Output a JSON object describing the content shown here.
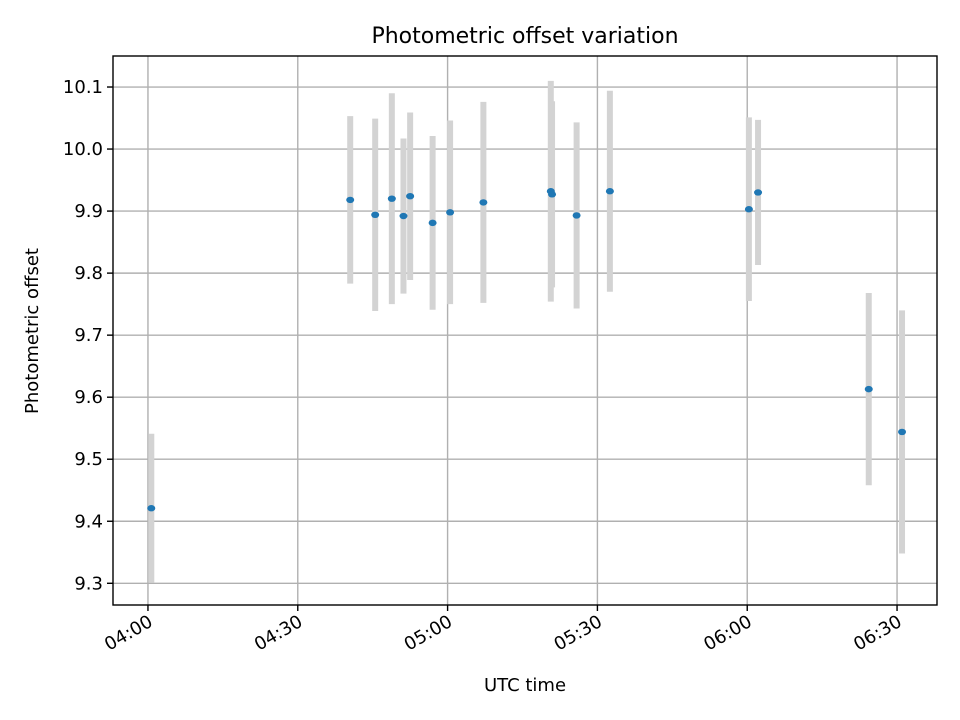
{
  "chart_data": {
    "type": "scatter",
    "title": "Photometric offset variation",
    "xlabel": "UTC time",
    "ylabel": "Photometric offset",
    "grid": true,
    "xlim": [
      "03:53",
      "06:38"
    ],
    "ylim": [
      9.265,
      10.15
    ],
    "xticks": [
      "04:00",
      "04:30",
      "05:00",
      "05:30",
      "06:00",
      "06:30"
    ],
    "yticks": [
      "9.3",
      "9.4",
      "9.5",
      "9.6",
      "9.7",
      "9.8",
      "9.9",
      "10.0",
      "10.1"
    ],
    "colors": {
      "point": "#1f77b4",
      "errorbar": "#d3d3d3"
    },
    "points": [
      {
        "time": "04:00:40",
        "value": 9.421,
        "error": 0.12
      },
      {
        "time": "04:40:30",
        "value": 9.918,
        "error": 0.135
      },
      {
        "time": "04:45:30",
        "value": 9.894,
        "error": 0.155
      },
      {
        "time": "04:48:50",
        "value": 9.92,
        "error": 0.17
      },
      {
        "time": "04:51:10",
        "value": 9.892,
        "error": 0.125
      },
      {
        "time": "04:52:30",
        "value": 9.924,
        "error": 0.135
      },
      {
        "time": "04:57:00",
        "value": 9.881,
        "error": 0.14
      },
      {
        "time": "05:00:30",
        "value": 9.898,
        "error": 0.148
      },
      {
        "time": "05:07:10",
        "value": 9.914,
        "error": 0.162
      },
      {
        "time": "05:20:40",
        "value": 9.932,
        "error": 0.178
      },
      {
        "time": "05:20:55",
        "value": 9.927,
        "error": 0.15
      },
      {
        "time": "05:25:50",
        "value": 9.893,
        "error": 0.15
      },
      {
        "time": "05:32:30",
        "value": 9.932,
        "error": 0.162
      },
      {
        "time": "06:00:20",
        "value": 9.903,
        "error": 0.148
      },
      {
        "time": "06:02:10",
        "value": 9.93,
        "error": 0.117
      },
      {
        "time": "06:24:20",
        "value": 9.613,
        "error": 0.155
      },
      {
        "time": "06:31:00",
        "value": 9.544,
        "error": 0.196
      }
    ]
  }
}
